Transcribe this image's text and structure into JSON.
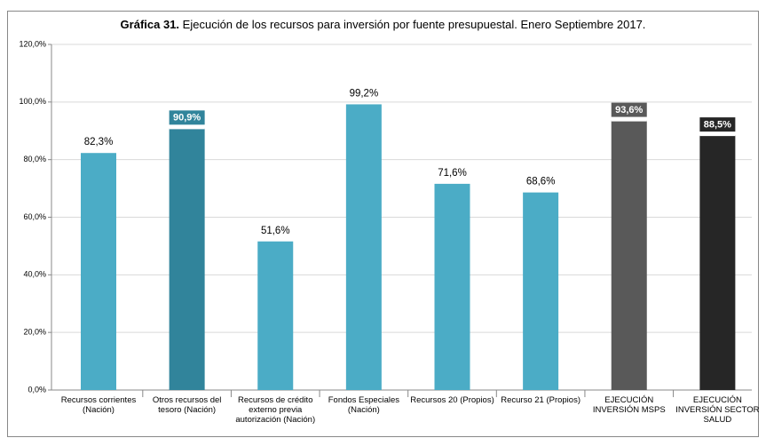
{
  "chart_data": {
    "type": "bar",
    "title_bold": "Gráfica 31.",
    "title": "Ejecución de los recursos para inversión por fuente presupuestal. Enero Septiembre 2017.",
    "categories": [
      "Recursos corrientes (Nación)",
      "Otros recursos del tesoro (Nación)",
      "Recursos de crédito externo previa autorización (Nación)",
      "Fondos Especiales (Nación)",
      "Recursos 20 (Propios)",
      "Recurso 21 (Propios)",
      "EJECUCIÓN INVERSIÓN MSPS",
      "EJECUCIÓN INVERSIÓN SECTOR SALUD"
    ],
    "values": [
      82.3,
      90.9,
      51.6,
      99.2,
      71.6,
      68.6,
      93.6,
      88.5
    ],
    "value_labels": [
      "82,3%",
      "90,9%",
      "51,6%",
      "99,2%",
      "71,6%",
      "68,6%",
      "93,6%",
      "88,5%"
    ],
    "colors": [
      "#4bacc6",
      "#31849b",
      "#4bacc6",
      "#4bacc6",
      "#4bacc6",
      "#4bacc6",
      "#595959",
      "#262626"
    ],
    "ylim": [
      0,
      120
    ],
    "yticks": [
      {
        "value": 0,
        "label": "0,0%"
      },
      {
        "value": 20,
        "label": "20,0%"
      },
      {
        "value": 40,
        "label": "40,0%"
      },
      {
        "value": 60,
        "label": "60,0%"
      },
      {
        "value": 80,
        "label": "80,0%"
      },
      {
        "value": 100,
        "label": "100,0%"
      },
      {
        "value": 120,
        "label": "120,0%"
      }
    ],
    "grid": true
  }
}
